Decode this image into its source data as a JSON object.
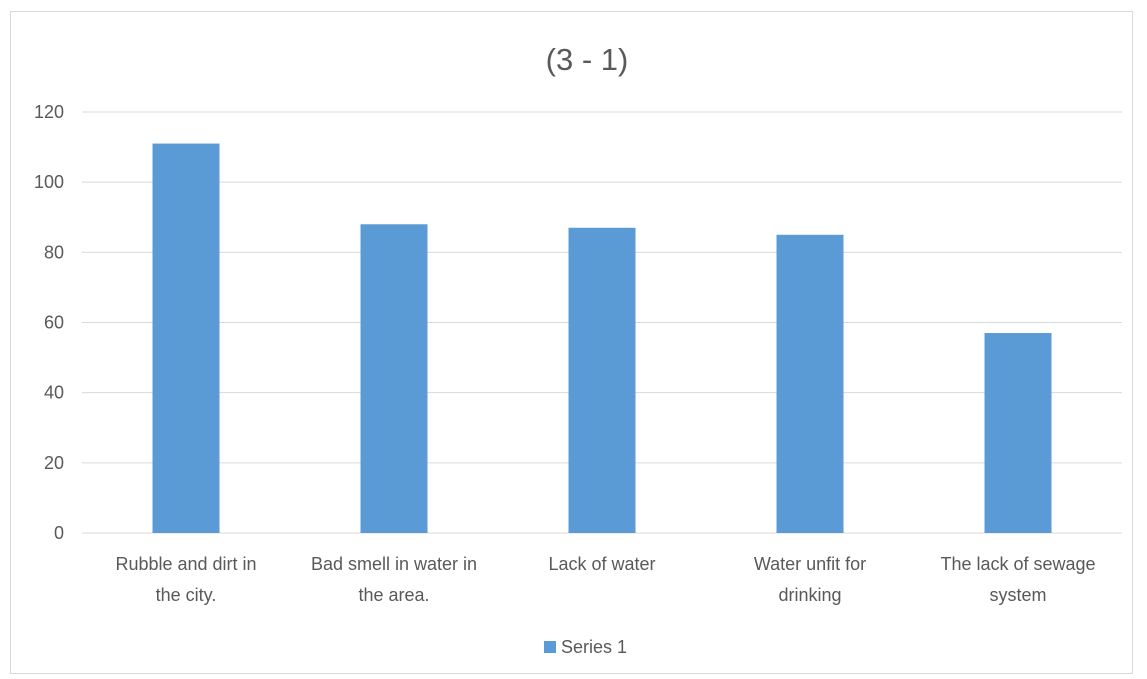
{
  "chart_data": {
    "type": "bar",
    "title": "(3 - 1)",
    "categories": [
      [
        "Rubble and dirt in",
        "the city."
      ],
      [
        "Bad smell in water in",
        "the area."
      ],
      [
        "Lack of water"
      ],
      [
        "Water unfit for",
        "drinking"
      ],
      [
        "The lack of sewage",
        "system"
      ]
    ],
    "series": [
      {
        "name": "Series 1",
        "values": [
          111,
          88,
          87,
          85,
          57
        ],
        "color": "#5b9bd5"
      }
    ],
    "ylim": [
      0,
      120
    ],
    "yticks": [
      0,
      20,
      40,
      60,
      80,
      100,
      120
    ],
    "grid": true,
    "legend": "bottom"
  }
}
